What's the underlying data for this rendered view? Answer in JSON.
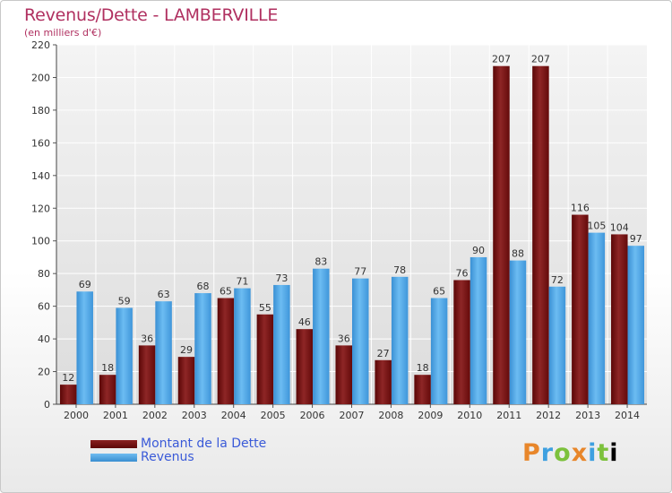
{
  "header": {
    "title": "Revenus/Dette - LAMBERVILLE",
    "subtitle": "(en milliers d'€)"
  },
  "legend": {
    "dette_label": "Montant de la Dette",
    "revenus_label": "Revenus"
  },
  "logo": {
    "text": "Proxiti",
    "letters": [
      "P",
      "r",
      "o",
      "x",
      "i",
      "t",
      "i"
    ]
  },
  "colors": {
    "dette": "#6e1010",
    "revenus": "#4ea6e6",
    "title": "#b03060",
    "legend_text": "#3a5ad8"
  },
  "chart_data": {
    "type": "bar",
    "title": "Revenus/Dette - LAMBERVILLE",
    "subtitle": "(en milliers d'€)",
    "categories": [
      "2000",
      "2001",
      "2002",
      "2003",
      "2004",
      "2005",
      "2006",
      "2007",
      "2008",
      "2009",
      "2010",
      "2011",
      "2012",
      "2013",
      "2014"
    ],
    "series": [
      {
        "name": "Montant de la Dette",
        "values": [
          12,
          18,
          36,
          29,
          65,
          55,
          46,
          36,
          27,
          18,
          76,
          207,
          207,
          116,
          104
        ]
      },
      {
        "name": "Revenus",
        "values": [
          69,
          59,
          63,
          68,
          71,
          73,
          83,
          77,
          78,
          65,
          90,
          88,
          72,
          105,
          97
        ]
      }
    ],
    "ylim": [
      0,
      220
    ],
    "yticks": [
      0,
      20,
      40,
      60,
      80,
      100,
      120,
      140,
      160,
      180,
      200,
      220
    ],
    "grid": true,
    "legend_position": "bottom-left"
  }
}
